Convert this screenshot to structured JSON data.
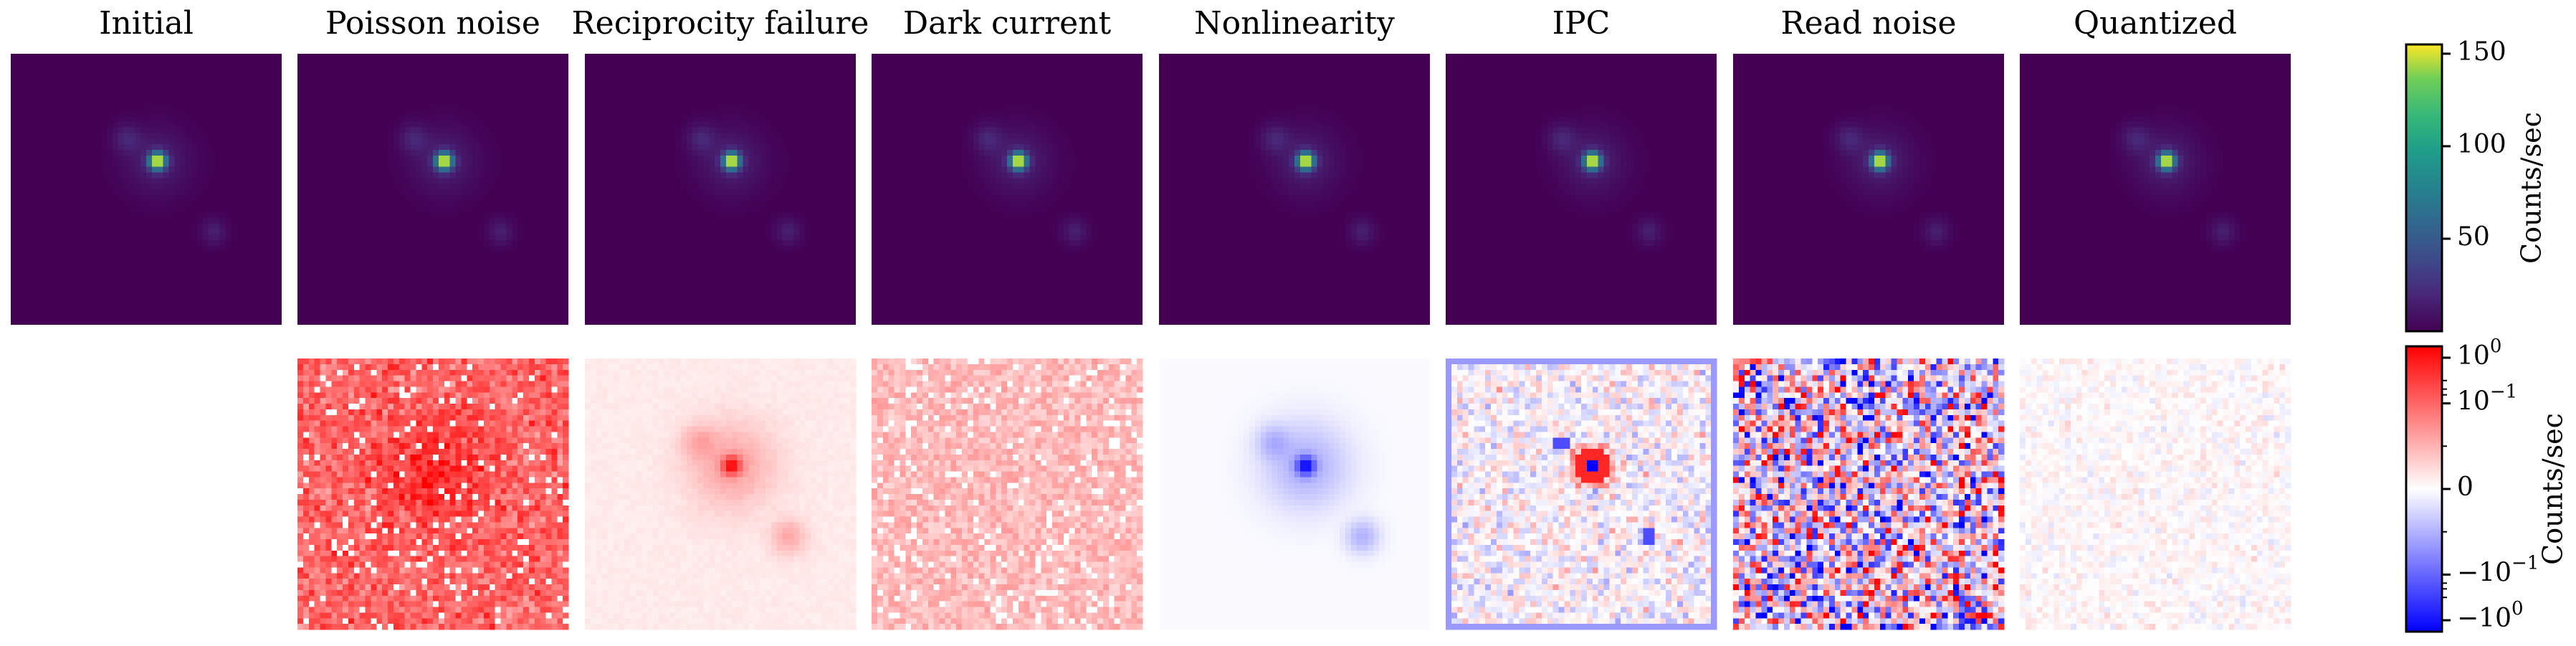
{
  "chart_data": {
    "type": "heatmap",
    "panels": [
      {
        "title": "Initial",
        "diff": false
      },
      {
        "title": "Poisson noise",
        "diff": true,
        "pattern": "poisson"
      },
      {
        "title": "Reciprocity failure",
        "diff": true,
        "pattern": "reciprocity"
      },
      {
        "title": "Dark current",
        "diff": true,
        "pattern": "dark"
      },
      {
        "title": "Nonlinearity",
        "diff": true,
        "pattern": "nonlinearity"
      },
      {
        "title": "IPC",
        "diff": true,
        "pattern": "ipc"
      },
      {
        "title": "Read noise",
        "diff": true,
        "pattern": "readnoise"
      },
      {
        "title": "Quantized",
        "diff": true,
        "pattern": "quantized"
      }
    ],
    "top_colorbar": {
      "label": "Counts/sec",
      "colormap": "viridis",
      "range": [
        0,
        155
      ],
      "ticks": [
        {
          "value": 50,
          "label": "50"
        },
        {
          "value": 100,
          "label": "100"
        },
        {
          "value": 150,
          "label": "150"
        }
      ]
    },
    "bottom_colorbar": {
      "label": "Counts/sec",
      "colormap": "bwr",
      "scale": "symlog",
      "ticks": [
        {
          "pos": 0.96,
          "label": "10",
          "exp": "0"
        },
        {
          "pos": 0.8,
          "label": "10",
          "exp": "−1"
        },
        {
          "pos": 0.5,
          "label": "0",
          "exp": ""
        },
        {
          "pos": 0.2,
          "label": "−10",
          "exp": "−1"
        },
        {
          "pos": 0.04,
          "label": "−10",
          "exp": "0"
        }
      ]
    }
  }
}
